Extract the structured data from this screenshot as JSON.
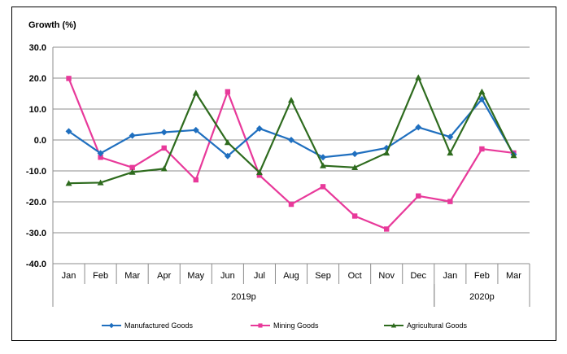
{
  "chart_data": {
    "type": "line",
    "ylabel": "Growth (%)",
    "ylim": [
      -40,
      30
    ],
    "yticks": [
      "30.0",
      "20.0",
      "10.0",
      "0.0",
      "-10.0",
      "-20.0",
      "-30.0",
      "-40.0"
    ],
    "ytick_values": [
      30,
      20,
      10,
      0,
      -10,
      -20,
      -30,
      -40
    ],
    "categories": [
      "Jan",
      "Feb",
      "Mar",
      "Apr",
      "May",
      "Jun",
      "Jul",
      "Aug",
      "Sep",
      "Oct",
      "Nov",
      "Dec",
      "Jan",
      "Feb",
      "Mar"
    ],
    "groups": [
      {
        "label": "2019p",
        "count": 12
      },
      {
        "label": "2020p",
        "count": 3
      }
    ],
    "grid": "horizontal",
    "legend_position": "bottom",
    "series": [
      {
        "name": "Manufactured Goods",
        "color": "#1F6FBF",
        "marker": "diamond",
        "values": [
          2.8,
          -4.3,
          1.4,
          2.5,
          3.2,
          -5.2,
          3.7,
          0.0,
          -5.6,
          -4.5,
          -2.6,
          4.1,
          1.0,
          13.2,
          -4.7
        ]
      },
      {
        "name": "Mining Goods",
        "color": "#E8399A",
        "marker": "square",
        "values": [
          19.9,
          -5.6,
          -8.9,
          -2.6,
          -12.9,
          15.6,
          -11.4,
          -20.8,
          -15.1,
          -24.6,
          -28.8,
          -18.1,
          -19.9,
          -2.9,
          -4.2
        ]
      },
      {
        "name": "Agricultural Goods",
        "color": "#2E6B1E",
        "marker": "triangle",
        "values": [
          -14.0,
          -13.8,
          -10.4,
          -9.3,
          15.2,
          -0.8,
          -10.5,
          12.9,
          -8.3,
          -8.9,
          -4.2,
          20.2,
          -4.2,
          15.6,
          -5.0
        ]
      }
    ]
  }
}
